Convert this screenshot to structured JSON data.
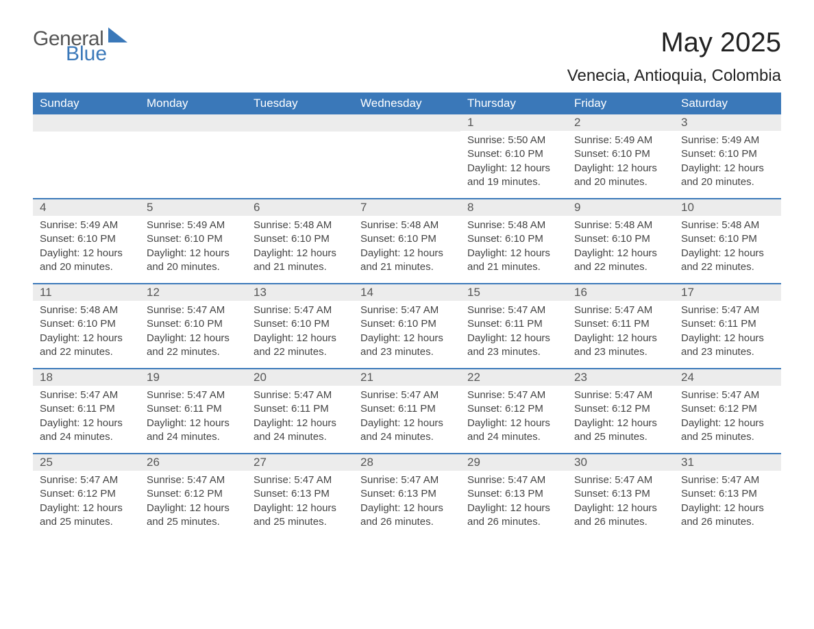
{
  "logo": {
    "general": "General",
    "blue": "Blue"
  },
  "title": "May 2025",
  "location": "Venecia, Antioquia, Colombia",
  "weekdays": [
    "Sunday",
    "Monday",
    "Tuesday",
    "Wednesday",
    "Thursday",
    "Friday",
    "Saturday"
  ],
  "colors": {
    "header_bg": "#3a78b9",
    "header_text": "#ffffff",
    "daynum_bg": "#ececec",
    "daynum_text": "#555555",
    "body_text": "#444444",
    "divider": "#3a78b9",
    "page_bg": "#ffffff"
  },
  "typography": {
    "title_fontsize": 40,
    "location_fontsize": 24,
    "weekday_fontsize": 17,
    "daynum_fontsize": 17,
    "body_fontsize": 15
  },
  "weeks": [
    {
      "days": [
        {
          "num": "",
          "sunrise": "",
          "sunset": "",
          "daylight": ""
        },
        {
          "num": "",
          "sunrise": "",
          "sunset": "",
          "daylight": ""
        },
        {
          "num": "",
          "sunrise": "",
          "sunset": "",
          "daylight": ""
        },
        {
          "num": "",
          "sunrise": "",
          "sunset": "",
          "daylight": ""
        },
        {
          "num": "1",
          "sunrise": "Sunrise: 5:50 AM",
          "sunset": "Sunset: 6:10 PM",
          "daylight": "Daylight: 12 hours and 19 minutes."
        },
        {
          "num": "2",
          "sunrise": "Sunrise: 5:49 AM",
          "sunset": "Sunset: 6:10 PM",
          "daylight": "Daylight: 12 hours and 20 minutes."
        },
        {
          "num": "3",
          "sunrise": "Sunrise: 5:49 AM",
          "sunset": "Sunset: 6:10 PM",
          "daylight": "Daylight: 12 hours and 20 minutes."
        }
      ]
    },
    {
      "days": [
        {
          "num": "4",
          "sunrise": "Sunrise: 5:49 AM",
          "sunset": "Sunset: 6:10 PM",
          "daylight": "Daylight: 12 hours and 20 minutes."
        },
        {
          "num": "5",
          "sunrise": "Sunrise: 5:49 AM",
          "sunset": "Sunset: 6:10 PM",
          "daylight": "Daylight: 12 hours and 20 minutes."
        },
        {
          "num": "6",
          "sunrise": "Sunrise: 5:48 AM",
          "sunset": "Sunset: 6:10 PM",
          "daylight": "Daylight: 12 hours and 21 minutes."
        },
        {
          "num": "7",
          "sunrise": "Sunrise: 5:48 AM",
          "sunset": "Sunset: 6:10 PM",
          "daylight": "Daylight: 12 hours and 21 minutes."
        },
        {
          "num": "8",
          "sunrise": "Sunrise: 5:48 AM",
          "sunset": "Sunset: 6:10 PM",
          "daylight": "Daylight: 12 hours and 21 minutes."
        },
        {
          "num": "9",
          "sunrise": "Sunrise: 5:48 AM",
          "sunset": "Sunset: 6:10 PM",
          "daylight": "Daylight: 12 hours and 22 minutes."
        },
        {
          "num": "10",
          "sunrise": "Sunrise: 5:48 AM",
          "sunset": "Sunset: 6:10 PM",
          "daylight": "Daylight: 12 hours and 22 minutes."
        }
      ]
    },
    {
      "days": [
        {
          "num": "11",
          "sunrise": "Sunrise: 5:48 AM",
          "sunset": "Sunset: 6:10 PM",
          "daylight": "Daylight: 12 hours and 22 minutes."
        },
        {
          "num": "12",
          "sunrise": "Sunrise: 5:47 AM",
          "sunset": "Sunset: 6:10 PM",
          "daylight": "Daylight: 12 hours and 22 minutes."
        },
        {
          "num": "13",
          "sunrise": "Sunrise: 5:47 AM",
          "sunset": "Sunset: 6:10 PM",
          "daylight": "Daylight: 12 hours and 22 minutes."
        },
        {
          "num": "14",
          "sunrise": "Sunrise: 5:47 AM",
          "sunset": "Sunset: 6:10 PM",
          "daylight": "Daylight: 12 hours and 23 minutes."
        },
        {
          "num": "15",
          "sunrise": "Sunrise: 5:47 AM",
          "sunset": "Sunset: 6:11 PM",
          "daylight": "Daylight: 12 hours and 23 minutes."
        },
        {
          "num": "16",
          "sunrise": "Sunrise: 5:47 AM",
          "sunset": "Sunset: 6:11 PM",
          "daylight": "Daylight: 12 hours and 23 minutes."
        },
        {
          "num": "17",
          "sunrise": "Sunrise: 5:47 AM",
          "sunset": "Sunset: 6:11 PM",
          "daylight": "Daylight: 12 hours and 23 minutes."
        }
      ]
    },
    {
      "days": [
        {
          "num": "18",
          "sunrise": "Sunrise: 5:47 AM",
          "sunset": "Sunset: 6:11 PM",
          "daylight": "Daylight: 12 hours and 24 minutes."
        },
        {
          "num": "19",
          "sunrise": "Sunrise: 5:47 AM",
          "sunset": "Sunset: 6:11 PM",
          "daylight": "Daylight: 12 hours and 24 minutes."
        },
        {
          "num": "20",
          "sunrise": "Sunrise: 5:47 AM",
          "sunset": "Sunset: 6:11 PM",
          "daylight": "Daylight: 12 hours and 24 minutes."
        },
        {
          "num": "21",
          "sunrise": "Sunrise: 5:47 AM",
          "sunset": "Sunset: 6:11 PM",
          "daylight": "Daylight: 12 hours and 24 minutes."
        },
        {
          "num": "22",
          "sunrise": "Sunrise: 5:47 AM",
          "sunset": "Sunset: 6:12 PM",
          "daylight": "Daylight: 12 hours and 24 minutes."
        },
        {
          "num": "23",
          "sunrise": "Sunrise: 5:47 AM",
          "sunset": "Sunset: 6:12 PM",
          "daylight": "Daylight: 12 hours and 25 minutes."
        },
        {
          "num": "24",
          "sunrise": "Sunrise: 5:47 AM",
          "sunset": "Sunset: 6:12 PM",
          "daylight": "Daylight: 12 hours and 25 minutes."
        }
      ]
    },
    {
      "days": [
        {
          "num": "25",
          "sunrise": "Sunrise: 5:47 AM",
          "sunset": "Sunset: 6:12 PM",
          "daylight": "Daylight: 12 hours and 25 minutes."
        },
        {
          "num": "26",
          "sunrise": "Sunrise: 5:47 AM",
          "sunset": "Sunset: 6:12 PM",
          "daylight": "Daylight: 12 hours and 25 minutes."
        },
        {
          "num": "27",
          "sunrise": "Sunrise: 5:47 AM",
          "sunset": "Sunset: 6:13 PM",
          "daylight": "Daylight: 12 hours and 25 minutes."
        },
        {
          "num": "28",
          "sunrise": "Sunrise: 5:47 AM",
          "sunset": "Sunset: 6:13 PM",
          "daylight": "Daylight: 12 hours and 26 minutes."
        },
        {
          "num": "29",
          "sunrise": "Sunrise: 5:47 AM",
          "sunset": "Sunset: 6:13 PM",
          "daylight": "Daylight: 12 hours and 26 minutes."
        },
        {
          "num": "30",
          "sunrise": "Sunrise: 5:47 AM",
          "sunset": "Sunset: 6:13 PM",
          "daylight": "Daylight: 12 hours and 26 minutes."
        },
        {
          "num": "31",
          "sunrise": "Sunrise: 5:47 AM",
          "sunset": "Sunset: 6:13 PM",
          "daylight": "Daylight: 12 hours and 26 minutes."
        }
      ]
    }
  ]
}
